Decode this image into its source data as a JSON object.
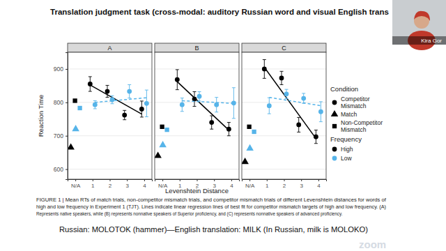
{
  "slide": {
    "title": "Translation judgment task (cross-modal: auditory Russian word and visual English trans",
    "caption": [
      "FIGURE 1 | Mean RTs of match trials, non-competitor mismatch trials, and competitor mismatch trials of different Levenshtein distances for words of",
      "high and low frequency in Experiment 1 (TJT). Lines indicate linear regression lines of best fit for competitor mismatch targets of high and low frequency. (A)",
      "Represents native speakers, while (B) represents nonnative speakers of Superior proficiency, and (C) represents nonnative speakers of advanced proficiency."
    ],
    "footnote": "Russian: MOLOTOK (hammer)—English translation: MILK (In Russian, milk is MOLOKO)",
    "speaker": "Kira Gor",
    "watermark": "zoom"
  },
  "figure": {
    "x_label": "Levenshtein Distance",
    "y_label": "Reaction Time",
    "condition_title": "Condition",
    "conditions": [
      {
        "name": "Competitor Mismatch",
        "marker": "circle"
      },
      {
        "name": "Match",
        "marker": "triangle"
      },
      {
        "name": "Non-Competitor Mismatch",
        "marker": "square"
      }
    ],
    "frequency_title": "Frequency",
    "frequencies": [
      {
        "name": "High",
        "color": "#000000"
      },
      {
        "name": "Low",
        "color": "#56B4E9"
      }
    ]
  },
  "chart_data": [
    {
      "type": "scatter",
      "title": "A",
      "categories": [
        "N/A",
        "1",
        "2",
        "3",
        "4"
      ],
      "ylim": [
        570,
        950
      ],
      "yticks": [
        600,
        700,
        800,
        900
      ],
      "grid": true,
      "series": [
        {
          "name": "Competitor Mismatch",
          "frequency": "High",
          "color": "#000000",
          "marker": "circle",
          "line_style": "solid",
          "values": [
            null,
            855,
            833,
            762,
            780
          ],
          "errors": [
            null,
            22,
            18,
            14,
            24
          ],
          "fit": [
            852,
            765
          ]
        },
        {
          "name": "Competitor Mismatch",
          "frequency": "Low",
          "color": "#56B4E9",
          "marker": "circle",
          "line_style": "dashed",
          "values": [
            null,
            793,
            808,
            833,
            797
          ],
          "errors": [
            null,
            12,
            12,
            20,
            40
          ],
          "fit": [
            800,
            814
          ]
        },
        {
          "name": "Match",
          "frequency": "High",
          "color": "#000000",
          "marker": "triangle",
          "values": [
            665,
            null,
            null,
            null,
            null
          ]
        },
        {
          "name": "Match",
          "frequency": "Low",
          "color": "#56B4E9",
          "marker": "triangle",
          "values": [
            720,
            null,
            null,
            null,
            null
          ]
        },
        {
          "name": "Non-Competitor Mismatch",
          "frequency": "High",
          "color": "#000000",
          "marker": "square",
          "values": [
            805,
            null,
            null,
            null,
            null
          ]
        },
        {
          "name": "Non-Competitor Mismatch",
          "frequency": "Low",
          "color": "#56B4E9",
          "marker": "square",
          "values": [
            783,
            null,
            null,
            null,
            null
          ]
        }
      ]
    },
    {
      "type": "scatter",
      "title": "B",
      "categories": [
        "N/A",
        "1",
        "2",
        "3",
        "4"
      ],
      "ylim": [
        570,
        950
      ],
      "yticks": [
        600,
        700,
        800,
        900
      ],
      "grid": true,
      "tick_labels": "x",
      "series": [
        {
          "name": "Competitor Mismatch",
          "frequency": "High",
          "color": "#000000",
          "marker": "circle",
          "line_style": "solid",
          "values": [
            null,
            868,
            810,
            740,
            720
          ],
          "errors": [
            null,
            30,
            22,
            20,
            20
          ],
          "fit": [
            862,
            717
          ]
        },
        {
          "name": "Competitor Mismatch",
          "frequency": "Low",
          "color": "#56B4E9",
          "marker": "circle",
          "line_style": "dashed",
          "values": [
            null,
            793,
            818,
            793,
            798
          ],
          "errors": [
            null,
            20,
            14,
            22,
            46
          ],
          "fit": [
            805,
            797
          ]
        },
        {
          "name": "Match",
          "frequency": "High",
          "color": "#000000",
          "marker": "triangle",
          "values": [
            640,
            null,
            null,
            null,
            null
          ]
        },
        {
          "name": "Match",
          "frequency": "Low",
          "color": "#56B4E9",
          "marker": "triangle",
          "values": [
            672,
            null,
            null,
            null,
            null
          ]
        },
        {
          "name": "Non-Competitor Mismatch",
          "frequency": "High",
          "color": "#000000",
          "marker": "square",
          "values": [
            727,
            null,
            null,
            null,
            null
          ]
        },
        {
          "name": "Non-Competitor Mismatch",
          "frequency": "Low",
          "color": "#56B4E9",
          "marker": "square",
          "values": [
            718,
            null,
            null,
            null,
            null
          ]
        }
      ]
    },
    {
      "type": "scatter",
      "title": "C",
      "categories": [
        "N/A",
        "1",
        "2",
        "3",
        "4"
      ],
      "ylim": [
        570,
        950
      ],
      "yticks": [
        600,
        700,
        800,
        900
      ],
      "grid": true,
      "tick_labels": "x",
      "series": [
        {
          "name": "Competitor Mismatch",
          "frequency": "High",
          "color": "#000000",
          "marker": "circle",
          "line_style": "solid",
          "values": [
            null,
            900,
            873,
            733,
            697
          ],
          "errors": [
            null,
            28,
            20,
            22,
            20
          ],
          "fit": [
            905,
            692
          ]
        },
        {
          "name": "Competitor Mismatch",
          "frequency": "Low",
          "color": "#56B4E9",
          "marker": "circle",
          "line_style": "dashed",
          "values": [
            null,
            790,
            825,
            812,
            772
          ],
          "errors": [
            null,
            24,
            14,
            15,
            30
          ],
          "fit": [
            815,
            790
          ]
        },
        {
          "name": "Match",
          "frequency": "High",
          "color": "#000000",
          "marker": "triangle",
          "values": [
            622,
            null,
            null,
            null,
            null
          ]
        },
        {
          "name": "Match",
          "frequency": "Low",
          "color": "#56B4E9",
          "marker": "triangle",
          "values": [
            662,
            null,
            null,
            null,
            null
          ]
        },
        {
          "name": "Non-Competitor Mismatch",
          "frequency": "High",
          "color": "#000000",
          "marker": "square",
          "values": [
            727,
            null,
            null,
            null,
            null
          ]
        },
        {
          "name": "Non-Competitor Mismatch",
          "frequency": "Low",
          "color": "#56B4E9",
          "marker": "square",
          "values": [
            712,
            null,
            null,
            null,
            null
          ]
        }
      ]
    }
  ]
}
